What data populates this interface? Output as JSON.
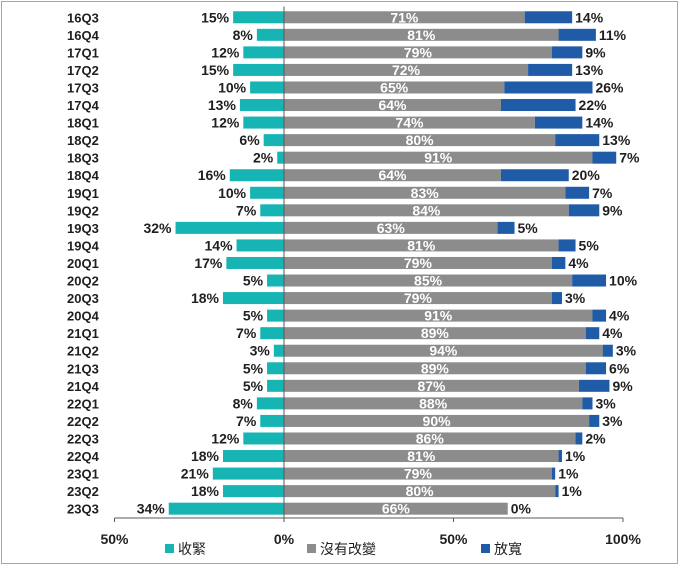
{
  "chart_data": {
    "type": "bar",
    "orientation": "horizontal",
    "stacked": true,
    "categories": [
      "16Q3",
      "16Q4",
      "17Q1",
      "17Q2",
      "17Q3",
      "17Q4",
      "18Q1",
      "18Q2",
      "18Q3",
      "18Q4",
      "19Q1",
      "19Q2",
      "19Q3",
      "19Q4",
      "20Q1",
      "20Q2",
      "20Q3",
      "20Q4",
      "21Q1",
      "21Q2",
      "21Q3",
      "21Q4",
      "22Q1",
      "22Q2",
      "22Q3",
      "22Q4",
      "23Q1",
      "23Q2",
      "23Q3"
    ],
    "series": [
      {
        "name": "收緊",
        "color": "#17b4b4",
        "direction": "left",
        "values": [
          15,
          8,
          12,
          15,
          10,
          13,
          12,
          6,
          2,
          16,
          10,
          7,
          32,
          14,
          17,
          5,
          18,
          5,
          7,
          3,
          5,
          5,
          8,
          7,
          12,
          18,
          21,
          18,
          34
        ],
        "labels": [
          "15%",
          "8%",
          "12%",
          "15%",
          "10%",
          "13%",
          "12%",
          "6%",
          "2%",
          "16%",
          "10%",
          "7%",
          "32%",
          "14%",
          "17%",
          "5%",
          "18%",
          "5%",
          "7%",
          "3%",
          "5%",
          "5%",
          "8%",
          "7%",
          "12%",
          "18%",
          "21%",
          "18%",
          "34%"
        ]
      },
      {
        "name": "沒有改變",
        "color": "#8c8c8c",
        "direction": "right",
        "values": [
          71,
          81,
          79,
          72,
          65,
          64,
          74,
          80,
          91,
          64,
          83,
          84,
          63,
          81,
          79,
          85,
          79,
          91,
          89,
          94,
          89,
          87,
          88,
          90,
          86,
          81,
          79,
          80,
          66
        ],
        "labels": [
          "71%",
          "81%",
          "79%",
          "72%",
          "65%",
          "64%",
          "74%",
          "80%",
          "91%",
          "64%",
          "83%",
          "84%",
          "63%",
          "81%",
          "79%",
          "85%",
          "79%",
          "91%",
          "89%",
          "94%",
          "89%",
          "87%",
          "88%",
          "90%",
          "86%",
          "81%",
          "79%",
          "80%",
          "66%"
        ]
      },
      {
        "name": "放寬",
        "color": "#1f5ba6",
        "direction": "right",
        "values": [
          14,
          11,
          9,
          13,
          26,
          22,
          14,
          13,
          7,
          20,
          7,
          9,
          5,
          5,
          4,
          10,
          3,
          4,
          4,
          3,
          6,
          9,
          3,
          3,
          2,
          1,
          1,
          1,
          0
        ],
        "labels": [
          "14%",
          "11%",
          "9%",
          "13%",
          "26%",
          "22%",
          "14%",
          "13%",
          "7%",
          "20%",
          "7%",
          "9%",
          "5%",
          "5%",
          "4%",
          "10%",
          "3%",
          "4%",
          "4%",
          "3%",
          "6%",
          "9%",
          "3%",
          "3%",
          "2%",
          "1%",
          "1%",
          "1%",
          "0%"
        ]
      }
    ],
    "xaxis": {
      "ticks": [
        -50,
        0,
        50,
        100
      ],
      "tick_labels": [
        "50%",
        "0%",
        "50%",
        "100%"
      ],
      "range": [
        -50,
        100
      ]
    },
    "legend": {
      "position": "bottom",
      "entries": [
        "收緊",
        "沒有改變",
        "放寬"
      ]
    },
    "grid": false
  }
}
